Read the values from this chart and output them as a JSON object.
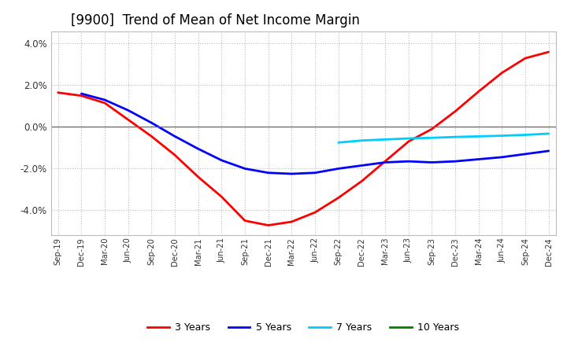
{
  "title": "[9900]  Trend of Mean of Net Income Margin",
  "x_labels": [
    "Sep-19",
    "Dec-19",
    "Mar-20",
    "Jun-20",
    "Sep-20",
    "Dec-20",
    "Mar-21",
    "Jun-21",
    "Sep-21",
    "Dec-21",
    "Mar-22",
    "Jun-22",
    "Sep-22",
    "Dec-22",
    "Mar-23",
    "Jun-23",
    "Sep-23",
    "Dec-23",
    "Mar-24",
    "Jun-24",
    "Sep-24",
    "Dec-24"
  ],
  "ylim": [
    -5.2,
    4.6
  ],
  "yticks": [
    -4.0,
    -2.0,
    0.0,
    2.0,
    4.0
  ],
  "series": {
    "3 Years": {
      "color": "#FF0000",
      "values": [
        1.65,
        1.5,
        1.15,
        0.35,
        -0.45,
        -1.35,
        -2.4,
        -3.35,
        -4.5,
        -4.72,
        -4.55,
        -4.1,
        -3.4,
        -2.6,
        -1.65,
        -0.7,
        -0.1,
        0.75,
        1.7,
        2.6,
        3.3,
        3.6
      ]
    },
    "5 Years": {
      "color": "#0000FF",
      "values": [
        null,
        1.6,
        1.3,
        0.8,
        0.2,
        -0.45,
        -1.05,
        -1.6,
        -2.0,
        -2.2,
        -2.25,
        -2.2,
        -2.0,
        -1.85,
        -1.7,
        -1.65,
        -1.7,
        -1.65,
        -1.55,
        -1.45,
        -1.3,
        -1.15
      ]
    },
    "7 Years": {
      "color": "#00CCFF",
      "values": [
        null,
        null,
        null,
        null,
        null,
        null,
        null,
        null,
        null,
        null,
        null,
        null,
        -0.75,
        -0.65,
        -0.6,
        -0.55,
        -0.52,
        -0.48,
        -0.45,
        -0.42,
        -0.38,
        -0.32
      ]
    },
    "10 Years": {
      "color": "#008000",
      "values": [
        null,
        null,
        null,
        null,
        null,
        null,
        null,
        null,
        null,
        null,
        null,
        null,
        null,
        null,
        null,
        null,
        null,
        null,
        null,
        null,
        null,
        null
      ]
    }
  },
  "background_color": "#FFFFFF",
  "grid_color": "#BBBBBB",
  "title_fontsize": 12,
  "legend_colors": {
    "3 Years": "#FF0000",
    "5 Years": "#0000FF",
    "7 Years": "#00CCFF",
    "10 Years": "#008000"
  }
}
